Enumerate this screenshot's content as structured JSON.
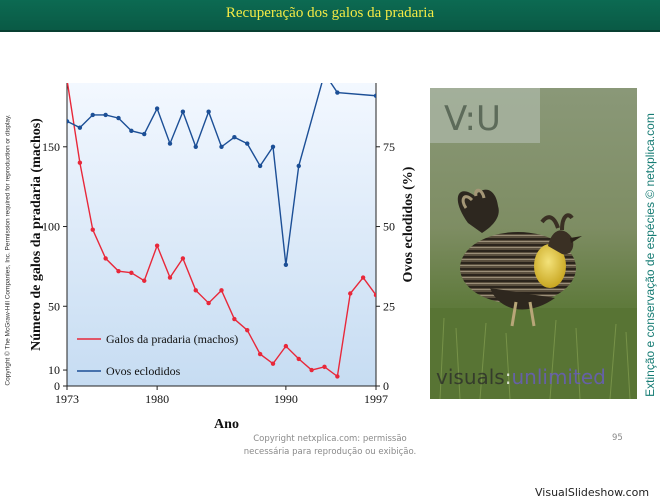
{
  "slide": {
    "title": "Recuperação dos galos da pradaria",
    "copyright_vertical": "Copyright © The McGraw-Hill Companies, Inc. Permission required for reproduction or display.",
    "side_label": "Extinção e conservação de espécies © netxplica.com",
    "footer_line1": "Copyright netxplica.com: permissão",
    "footer_line2": "necessária para reprodução ou exibição.",
    "page_number": "95",
    "brand_name": "VisualSlideshow.com"
  },
  "photo": {
    "logo_text": "V:U",
    "watermark_part1": "visuals",
    "watermark_sep": ":",
    "watermark_part2": "unlimited"
  },
  "chart_data": {
    "type": "line",
    "xlabel": "Ano",
    "ylabel_left": "Número de galos da pradaria (machos)",
    "ylabel_right": "Ovos eclodidos (%)",
    "xlim": [
      1973,
      1997
    ],
    "ylim_left": [
      0,
      190
    ],
    "ylim_right": [
      0,
      95
    ],
    "x_ticks": [
      1973,
      1980,
      1990,
      1997
    ],
    "y_left_ticks": [
      0,
      10,
      50,
      100,
      150
    ],
    "y_right_ticks": [
      0,
      25,
      50,
      75
    ],
    "legend_position": "bottom-left",
    "series": [
      {
        "name": "Galos da pradaria (machos)",
        "axis": "left",
        "color": "#e8283a",
        "x": [
          1973,
          1974,
          1975,
          1976,
          1977,
          1978,
          1979,
          1980,
          1981,
          1982,
          1983,
          1984,
          1985,
          1986,
          1987,
          1988,
          1989,
          1990,
          1991,
          1992,
          1993,
          1994,
          1995,
          1996,
          1997
        ],
        "y": [
          192,
          140,
          98,
          80,
          72,
          71,
          66,
          88,
          68,
          80,
          60,
          52,
          60,
          42,
          35,
          20,
          14,
          25,
          17,
          10,
          12,
          6,
          58,
          68,
          57
        ]
      },
      {
        "name": "Ovos eclodidos",
        "axis": "right",
        "color": "#1c4f96",
        "x": [
          1973,
          1974,
          1975,
          1976,
          1977,
          1978,
          1979,
          1980,
          1981,
          1982,
          1983,
          1984,
          1985,
          1986,
          1987,
          1988,
          1989,
          1990,
          1991,
          1993,
          1994,
          1997
        ],
        "y": [
          83,
          81,
          85,
          85,
          84,
          80,
          79,
          87,
          76,
          86,
          75,
          86,
          75,
          78,
          76,
          69,
          75,
          38,
          69,
          98,
          92,
          91
        ]
      }
    ]
  }
}
